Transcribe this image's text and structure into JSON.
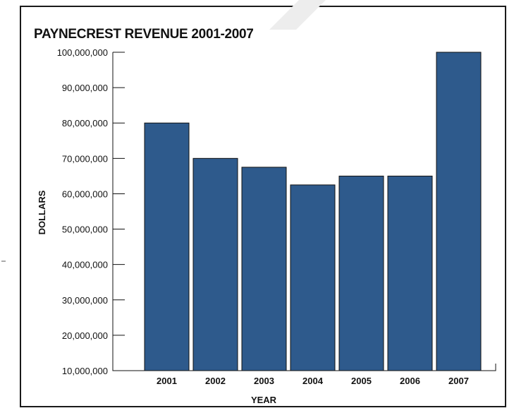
{
  "chart_data": {
    "type": "bar",
    "title": "PAYNECREST REVENUE 2001-2007",
    "xlabel": "YEAR",
    "ylabel": "DOLLARS",
    "categories": [
      "2001",
      "2002",
      "2003",
      "2004",
      "2005",
      "2006",
      "2007"
    ],
    "values": [
      80000000,
      70000000,
      67500000,
      62500000,
      65000000,
      65000000,
      100000000
    ],
    "ylim": [
      10000000,
      100000000
    ],
    "yticks": [
      10000000,
      20000000,
      30000000,
      40000000,
      50000000,
      60000000,
      70000000,
      80000000,
      90000000,
      100000000
    ],
    "ytick_labels": [
      "10,000,000",
      "20,000,000",
      "30,000,000",
      "40,000,000",
      "50,000,000",
      "60,000,000",
      "70,000,000",
      "80,000,000",
      "90,000,000",
      "100,000,000"
    ],
    "grid": false,
    "legend": "none",
    "colors": {
      "bar": "#2e5a8c",
      "axis": "#111111"
    }
  }
}
